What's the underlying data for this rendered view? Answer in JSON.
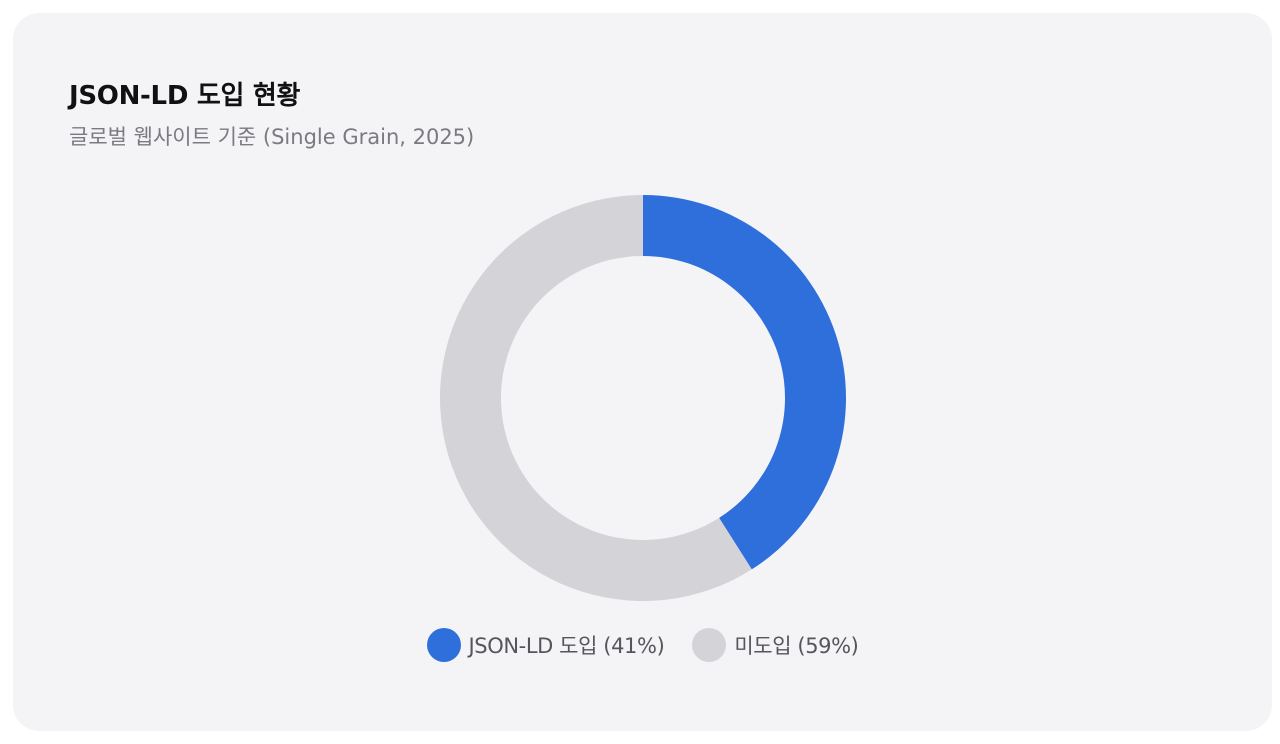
{
  "card": {
    "title": "JSON-LD 도입 현황",
    "subtitle": "글로벌 웹사이트 기준 (Single Grain, 2025)"
  },
  "chart_data": {
    "type": "pie",
    "donut": true,
    "title": "JSON-LD 도입 현황",
    "subtitle": "글로벌 웹사이트 기준 (Single Grain, 2025)",
    "legend_position": "bottom",
    "slices": [
      {
        "label": "JSON-LD 도입 (41%)",
        "value": 41,
        "color": "#2f6fdc"
      },
      {
        "label": "미도입 (59%)",
        "value": 59,
        "color": "#d4d4d8"
      }
    ]
  }
}
